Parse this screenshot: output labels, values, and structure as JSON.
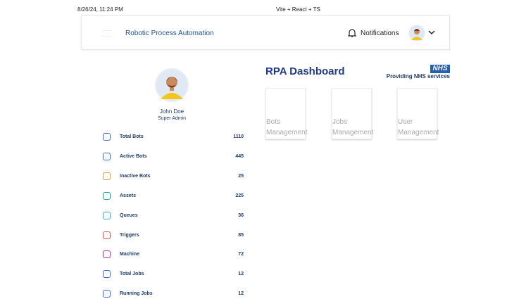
{
  "browser": {
    "timestamp": "8/26/24, 11:24 PM",
    "tab_title": "Vite + React + TS"
  },
  "header": {
    "title": "Robotic Process Automation",
    "notifications": "Notifications"
  },
  "profile": {
    "name": "John Doe",
    "role": "Super Admin"
  },
  "stats": [
    {
      "label": "Total Bots",
      "value": 1110,
      "color": "#3b6fd1"
    },
    {
      "label": "Active Bots",
      "value": 445,
      "color": "#3b6fd1"
    },
    {
      "label": "Inactive Bots",
      "value": 25,
      "color": "#e0a23a"
    },
    {
      "label": "Assets",
      "value": 225,
      "color": "#1aa3a3"
    },
    {
      "label": "Queues",
      "value": 36,
      "color": "#2bb5c7"
    },
    {
      "label": "Triggers",
      "value": 85,
      "color": "#d9534f"
    },
    {
      "label": "Machine",
      "value": 72,
      "color": "#b03a9a"
    },
    {
      "label": "Total Jobs",
      "value": 12,
      "color": "#3b6fd1"
    },
    {
      "label": "Running Jobs",
      "value": 12,
      "color": "#3b6fd1"
    }
  ],
  "dashboard": {
    "title": "RPA Dashboard",
    "logo": "NHS",
    "tagline": "Providing NHS services",
    "cards": [
      "Bots Management",
      "Jobs Management",
      "User Management"
    ]
  }
}
